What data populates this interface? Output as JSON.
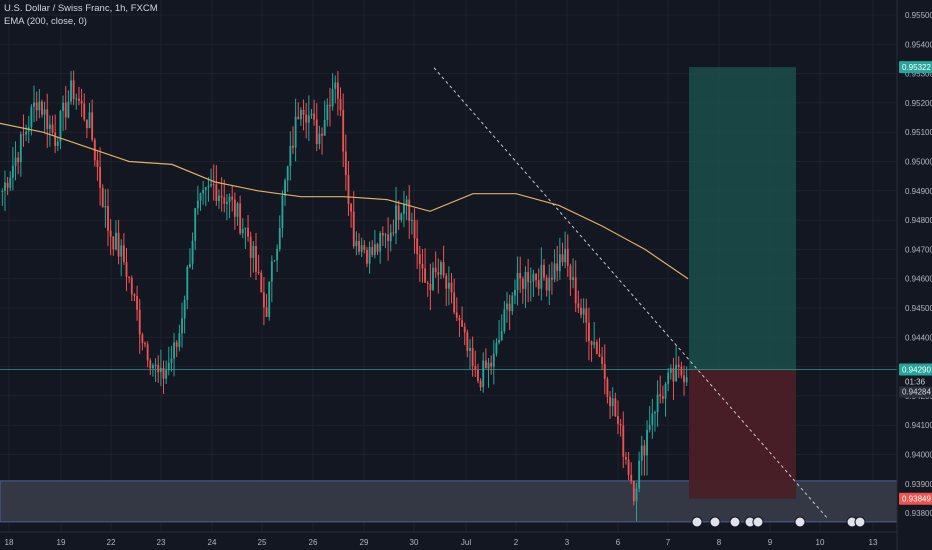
{
  "header": {
    "symbol": "U.S. Dollar / Swiss Franc, 1h, FXCM",
    "indicator": "EMA (200, close, 0)"
  },
  "colors": {
    "background": "#131722",
    "grid": "#1e222d",
    "up": "#26a69a",
    "down": "#ef5350",
    "ema": "#e0b060",
    "axis_text": "#b2b5be",
    "target_zone": "#1b4b49",
    "stop_zone": "#4a1f26",
    "support_zone": "#3a3e4a",
    "trendline": "#c8c8c8",
    "target_tag": "#26a69a",
    "stop_tag": "#ef5350",
    "current_tag": "#131722"
  },
  "chart_data": {
    "type": "candlestick",
    "title": "U.S. Dollar / Swiss Franc, 1h, FXCM",
    "x_tick_labels": [
      "18",
      "19",
      "22",
      "23",
      "24",
      "25",
      "26",
      "29",
      "30",
      "Jul",
      "2",
      "3",
      "6",
      "7",
      "8",
      "9",
      "10",
      "13"
    ],
    "y_tick_labels": [
      "0.95500",
      "0.95400",
      "0.95300",
      "0.95200",
      "0.95100",
      "0.95000",
      "0.94900",
      "0.94800",
      "0.94700",
      "0.94600",
      "0.94500",
      "0.94400",
      "0.94300",
      "0.94200",
      "0.94100",
      "0.94000",
      "0.93900",
      "0.93800"
    ],
    "ylim": [
      0.9377,
      0.9552
    ],
    "price_tags": {
      "target": "0.95322",
      "current": "0.94290",
      "countdown": "01:36",
      "last": "0.94284",
      "stop": "0.93849"
    },
    "long_position": {
      "entry": 0.9429,
      "target": 0.95322,
      "stop": 0.93849,
      "start_day": "Jul 7",
      "end_day": "Jul 9"
    },
    "support_zone": [
      0.9377,
      0.9391
    ],
    "trendline": {
      "from_price": 0.9532,
      "to_price": 0.9378
    },
    "ema_200": [
      0.9513,
      0.951,
      0.9505,
      0.95,
      0.9499,
      0.9493,
      0.949,
      0.9488,
      0.9488,
      0.9487,
      0.9483,
      0.9489,
      0.9489,
      0.9485,
      0.9478,
      0.947,
      0.946
    ],
    "price_path": [
      0.949,
      0.9505,
      0.9522,
      0.9508,
      0.9525,
      0.9512,
      0.9478,
      0.9465,
      0.944,
      0.9425,
      0.9438,
      0.9482,
      0.9492,
      0.9486,
      0.9475,
      0.9448,
      0.9488,
      0.9522,
      0.9508,
      0.953,
      0.9475,
      0.9468,
      0.9475,
      0.949,
      0.9458,
      0.9462,
      0.9445,
      0.9425,
      0.9432,
      0.9455,
      0.9462,
      0.946,
      0.9468,
      0.9448,
      0.9435,
      0.9412,
      0.9388,
      0.9415,
      0.9425,
      0.9429
    ]
  }
}
